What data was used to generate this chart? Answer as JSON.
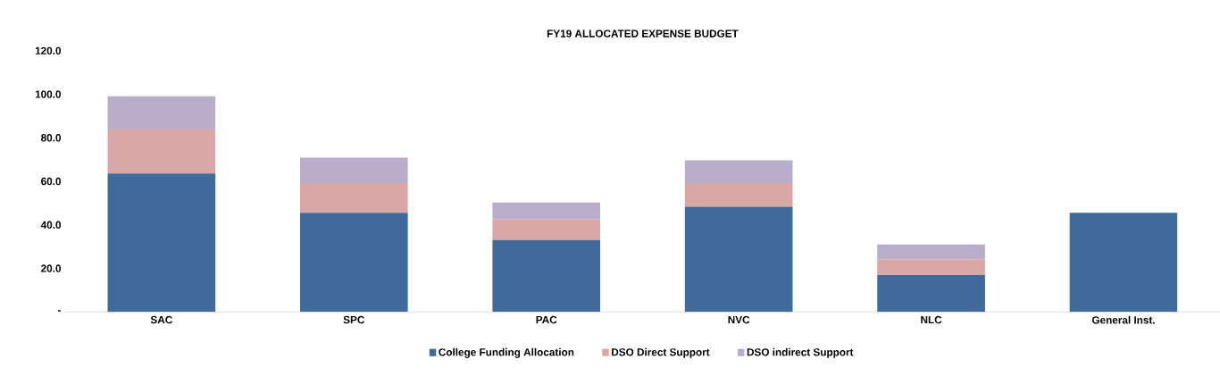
{
  "chart_data": {
    "type": "bar",
    "title": "FY19 ALLOCATED EXPENSE BUDGET",
    "stacked": true,
    "categories": [
      "SAC",
      "SPC",
      "PAC",
      "NVC",
      "NLC",
      "General Inst."
    ],
    "series": [
      {
        "name": "College Funding Allocation",
        "color": "#3f6a9a",
        "values": [
          63.6,
          45.5,
          33.0,
          48.3,
          16.9,
          45.5
        ]
      },
      {
        "name": "DSO Direct Support",
        "color": "#d9a8a6",
        "values": [
          20.2,
          13.7,
          9.7,
          10.9,
          7.3,
          null
        ]
      },
      {
        "name": "DSO indirect Support",
        "color": "#b8aecb",
        "values": [
          15.3,
          11.7,
          7.6,
          10.5,
          6.8,
          null
        ]
      }
    ],
    "ylim": [
      0,
      120
    ],
    "yticks": [
      {
        "value": 0,
        "label": "-"
      },
      {
        "value": 20,
        "label": "20.0"
      },
      {
        "value": 40,
        "label": "40.0"
      },
      {
        "value": 60,
        "label": "60.0"
      },
      {
        "value": 80,
        "label": "80.0"
      },
      {
        "value": 100,
        "label": "100.0"
      },
      {
        "value": 120,
        "label": "120.0"
      }
    ],
    "grid": false,
    "legend": "bottom"
  }
}
